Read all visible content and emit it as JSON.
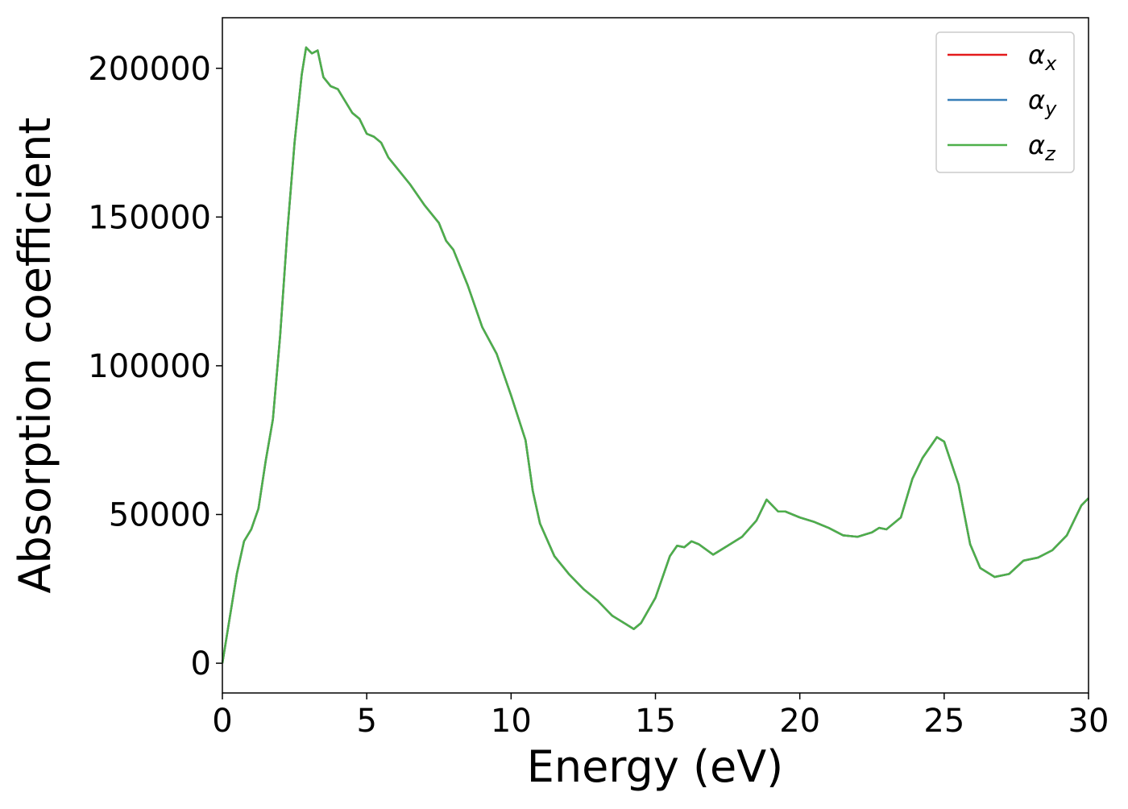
{
  "chart_data": {
    "type": "line",
    "xlabel": "Energy (eV)",
    "ylabel": "Absorption coefficient",
    "x": [
      0,
      0.25,
      0.5,
      0.75,
      1.0,
      1.25,
      1.5,
      1.75,
      2.0,
      2.25,
      2.5,
      2.75,
      2.9,
      3.1,
      3.3,
      3.5,
      3.75,
      4.0,
      4.25,
      4.5,
      4.75,
      5.0,
      5.25,
      5.5,
      5.75,
      6.0,
      6.5,
      7.0,
      7.5,
      7.75,
      8.0,
      8.5,
      9.0,
      9.5,
      10.0,
      10.5,
      10.75,
      11.0,
      11.5,
      12.0,
      12.5,
      13.0,
      13.5,
      14.0,
      14.25,
      14.5,
      15.0,
      15.5,
      15.75,
      16.0,
      16.25,
      16.5,
      17.0,
      17.5,
      18.0,
      18.5,
      18.85,
      19.25,
      19.5,
      20.0,
      20.5,
      21.0,
      21.5,
      22.0,
      22.5,
      22.75,
      23.0,
      23.5,
      23.9,
      24.25,
      24.75,
      25.0,
      25.5,
      25.9,
      26.25,
      26.75,
      27.25,
      27.75,
      28.25,
      28.75,
      29.25,
      29.75,
      30.0
    ],
    "series": [
      {
        "name": "αx",
        "color": "#e41a1c",
        "values": [
          0,
          15000,
          30000,
          41000,
          45000,
          52000,
          68000,
          82000,
          110000,
          145000,
          175000,
          198000,
          207000,
          205000,
          206000,
          197000,
          194000,
          193000,
          189000,
          185000,
          183000,
          178000,
          177000,
          175000,
          170000,
          167000,
          161000,
          154000,
          148000,
          142000,
          139000,
          127000,
          113000,
          104000,
          90000,
          75000,
          58000,
          47000,
          36000,
          30000,
          25000,
          21000,
          16000,
          13000,
          11500,
          13500,
          22000,
          36000,
          39500,
          39000,
          41000,
          40000,
          36500,
          39500,
          42500,
          48000,
          55000,
          51000,
          51000,
          49000,
          47500,
          45500,
          43000,
          42500,
          44000,
          45500,
          45000,
          49000,
          62000,
          69000,
          76000,
          74500,
          60000,
          40000,
          32000,
          29000,
          30000,
          34500,
          35500,
          38000,
          43000,
          53000,
          55500
        ]
      },
      {
        "name": "αy",
        "color": "#377eb8",
        "values": [
          0,
          15000,
          30000,
          41000,
          45000,
          52000,
          68000,
          82000,
          110000,
          145000,
          175000,
          198000,
          207000,
          205000,
          206000,
          197000,
          194000,
          193000,
          189000,
          185000,
          183000,
          178000,
          177000,
          175000,
          170000,
          167000,
          161000,
          154000,
          148000,
          142000,
          139000,
          127000,
          113000,
          104000,
          90000,
          75000,
          58000,
          47000,
          36000,
          30000,
          25000,
          21000,
          16000,
          13000,
          11500,
          13500,
          22000,
          36000,
          39500,
          39000,
          41000,
          40000,
          36500,
          39500,
          42500,
          48000,
          55000,
          51000,
          51000,
          49000,
          47500,
          45500,
          43000,
          42500,
          44000,
          45500,
          45000,
          49000,
          62000,
          69000,
          76000,
          74500,
          60000,
          40000,
          32000,
          29000,
          30000,
          34500,
          35500,
          38000,
          43000,
          53000,
          55500
        ]
      },
      {
        "name": "αz",
        "color": "#4daf4a",
        "values": [
          0,
          15000,
          30000,
          41000,
          45000,
          52000,
          68000,
          82000,
          110000,
          145000,
          175000,
          198000,
          207000,
          205000,
          206000,
          197000,
          194000,
          193000,
          189000,
          185000,
          183000,
          178000,
          177000,
          175000,
          170000,
          167000,
          161000,
          154000,
          148000,
          142000,
          139000,
          127000,
          113000,
          104000,
          90000,
          75000,
          58000,
          47000,
          36000,
          30000,
          25000,
          21000,
          16000,
          13000,
          11500,
          13500,
          22000,
          36000,
          39500,
          39000,
          41000,
          40000,
          36500,
          39500,
          42500,
          48000,
          55000,
          51000,
          51000,
          49000,
          47500,
          45500,
          43000,
          42500,
          44000,
          45500,
          45000,
          49000,
          62000,
          69000,
          76000,
          74500,
          60000,
          40000,
          32000,
          29000,
          30000,
          34500,
          35500,
          38000,
          43000,
          53000,
          55500
        ]
      }
    ],
    "xlim": [
      0,
      30
    ],
    "xticks": [
      0,
      5,
      10,
      15,
      20,
      25,
      30
    ],
    "ylim": [
      -10000,
      217000
    ],
    "yticks": [
      0,
      50000,
      100000,
      150000,
      200000
    ],
    "grid": false,
    "legend": "upper right"
  }
}
